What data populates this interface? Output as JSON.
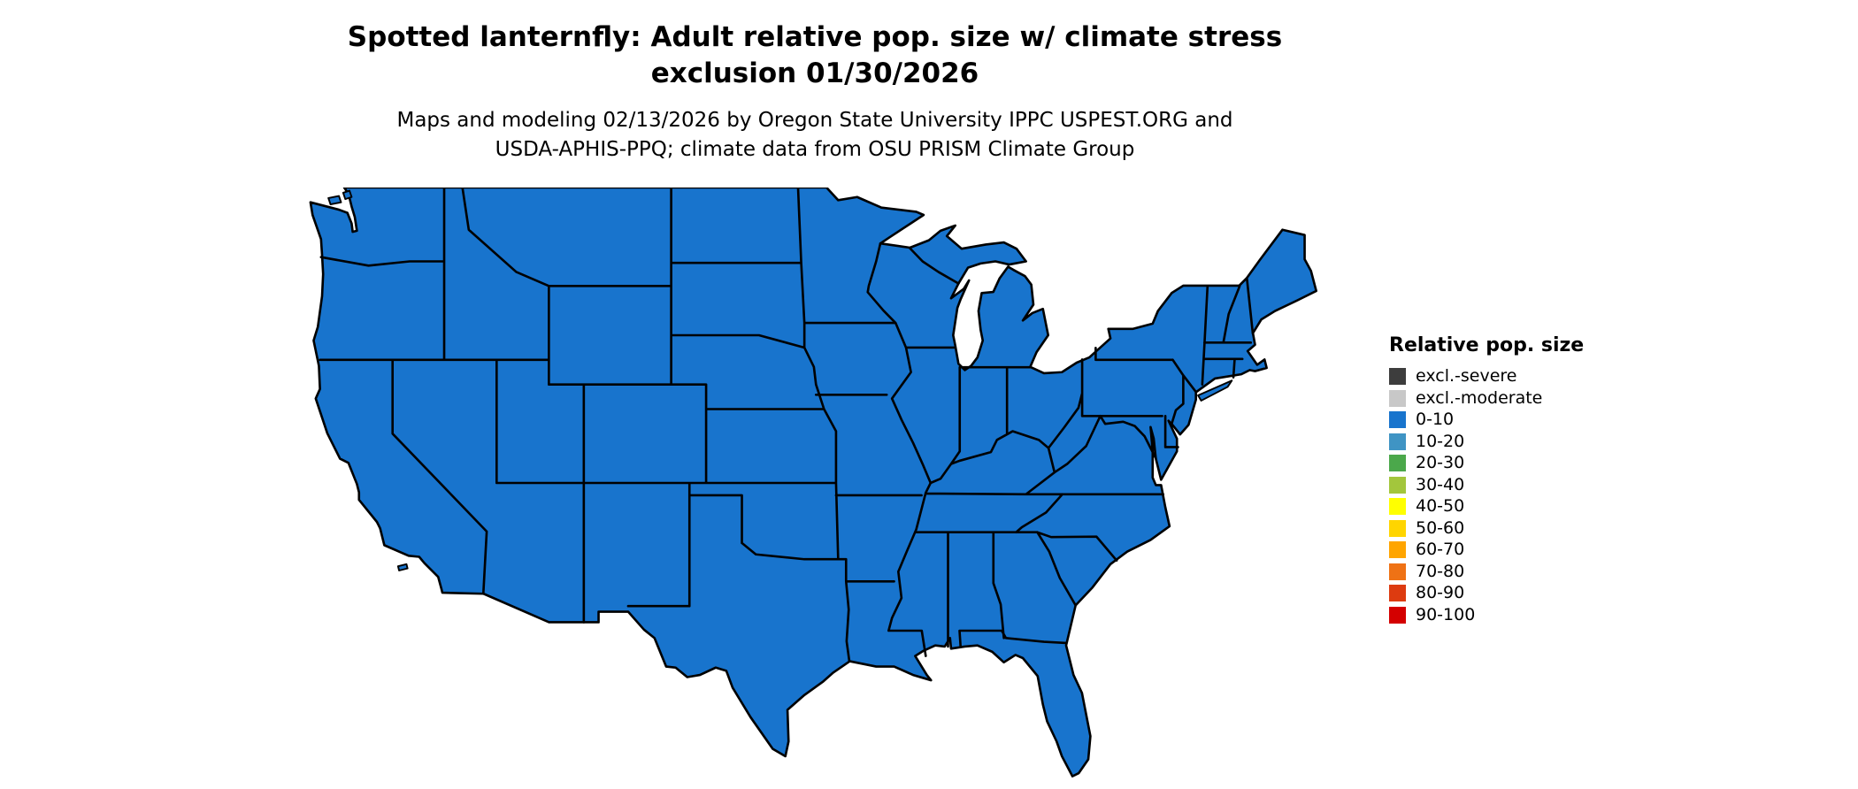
{
  "title": {
    "line1": "Spotted lanternfly: Adult relative pop. size w/ climate stress",
    "line2": "exclusion 01/30/2026"
  },
  "subtitle": {
    "line1": "Maps and modeling 02/13/2026 by Oregon State University IPPC USPEST.ORG and",
    "line2": "USDA-APHIS-PPQ; climate data from OSU PRISM Climate Group"
  },
  "map": {
    "region": "Contiguous United States",
    "depicted_class": "0-10",
    "fill_color": "#1874cd",
    "border_color": "#000000",
    "island_stroke_color": "#4d9fe8"
  },
  "legend": {
    "title": "Relative pop. size",
    "items": [
      {
        "label": "excl.-severe",
        "color": "#3d3d3d"
      },
      {
        "label": "excl.-moderate",
        "color": "#c8c8c8"
      },
      {
        "label": "0-10",
        "color": "#1874cd"
      },
      {
        "label": "10-20",
        "color": "#3f94c4"
      },
      {
        "label": "20-30",
        "color": "#4ba84b"
      },
      {
        "label": "30-40",
        "color": "#a3c63c"
      },
      {
        "label": "40-50",
        "color": "#ffff00"
      },
      {
        "label": "50-60",
        "color": "#ffd500"
      },
      {
        "label": "60-70",
        "color": "#ffa500"
      },
      {
        "label": "70-80",
        "color": "#ef7215"
      },
      {
        "label": "80-90",
        "color": "#dd3b10"
      },
      {
        "label": "90-100",
        "color": "#d40000"
      }
    ]
  }
}
